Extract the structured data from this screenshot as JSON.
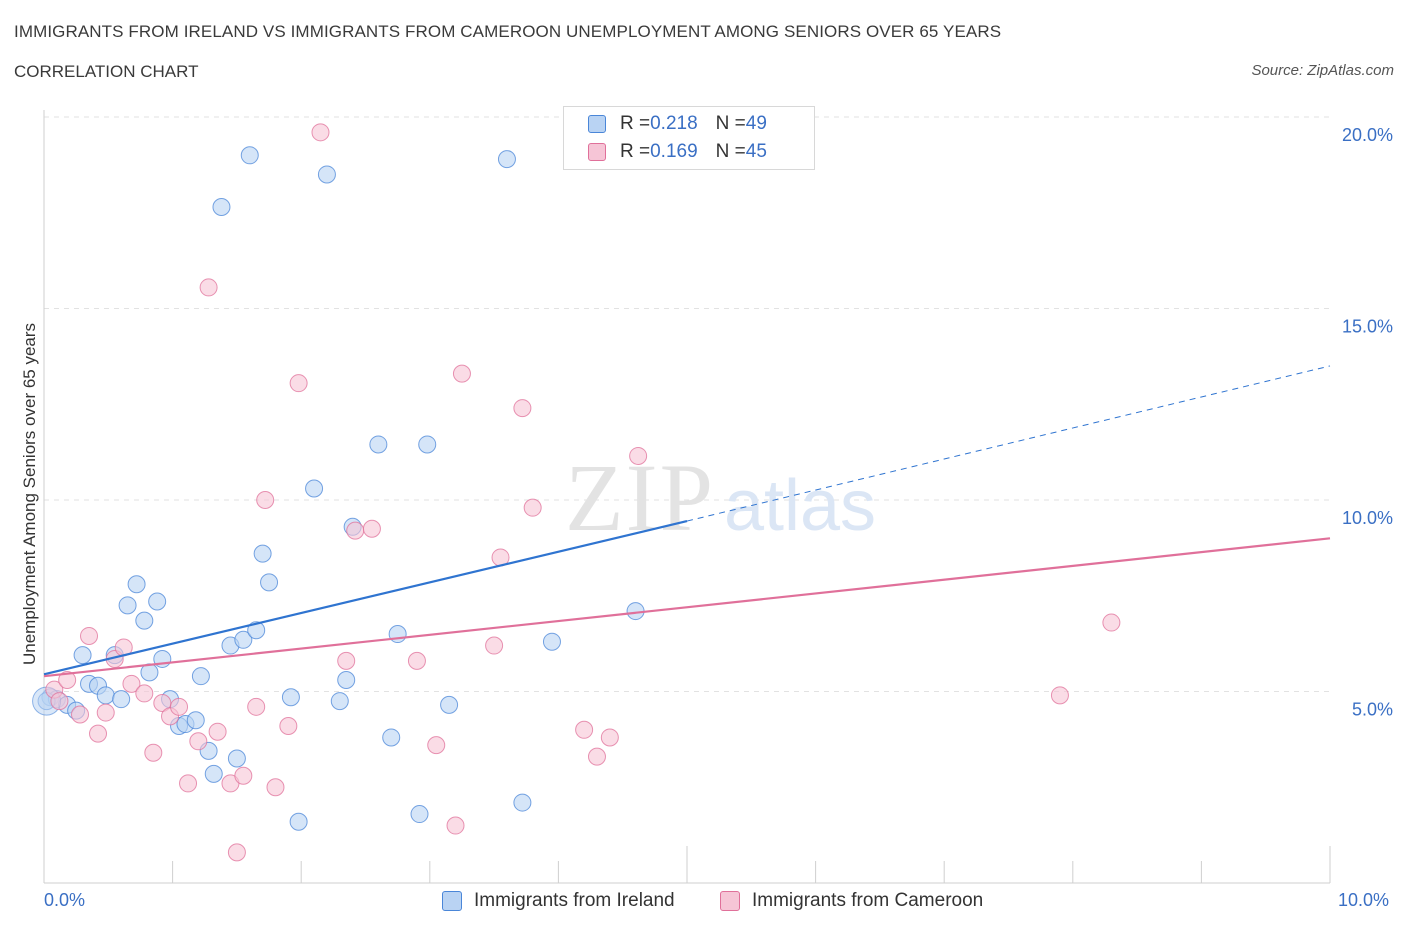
{
  "header": {
    "title": "IMMIGRANTS FROM IRELAND VS IMMIGRANTS FROM CAMEROON UNEMPLOYMENT AMONG SENIORS OVER 65 YEARS",
    "subtitle": "CORRELATION CHART",
    "source": "Source: ZipAtlas.com"
  },
  "legend": {
    "ireland": {
      "r_label": "R = ",
      "r_value": "0.218",
      "n_label": "N = ",
      "n_value": "49"
    },
    "cameroon": {
      "r_label": "R = ",
      "r_value": "0.169",
      "n_label": "N = ",
      "n_value": "45"
    }
  },
  "chart_data": {
    "type": "scatter",
    "title": "IMMIGRANTS FROM IRELAND VS IMMIGRANTS FROM CAMEROON UNEMPLOYMENT AMONG SENIORS OVER 65 YEARS",
    "subtitle": "CORRELATION CHART",
    "xlabel": "",
    "ylabel": "Unemployment Among Seniors over 65 years",
    "xlim": [
      0,
      10
    ],
    "ylim": [
      0,
      20
    ],
    "x_tick_labels": [
      "0.0%",
      "10.0%"
    ],
    "y_ticks": [
      5,
      10,
      15,
      20
    ],
    "y_tick_labels": [
      "5.0%",
      "10.0%",
      "15.0%",
      "20.0%"
    ],
    "grid": true,
    "legend_position": "top-center",
    "colors": {
      "ireland": "#4a86d8",
      "ireland_fill": "#b9d3f3",
      "cameroon": "#e0709a",
      "cameroon_fill": "#f6c5d6"
    },
    "series": [
      {
        "name": "Immigrants from Ireland",
        "R": 0.218,
        "N": 49,
        "trend": {
          "x0": 0.0,
          "y0": 5.45,
          "x1": 5.0,
          "y1": 9.45,
          "dashed_to_x": 10.0,
          "dashed_to_y": 13.5
        },
        "points": [
          [
            0.05,
            4.85
          ],
          [
            0.1,
            4.8
          ],
          [
            0.18,
            4.65
          ],
          [
            0.25,
            4.5
          ],
          [
            0.3,
            5.95
          ],
          [
            0.35,
            5.2
          ],
          [
            0.42,
            5.15
          ],
          [
            0.48,
            4.9
          ],
          [
            0.55,
            5.95
          ],
          [
            0.6,
            4.8
          ],
          [
            0.65,
            7.25
          ],
          [
            0.72,
            7.8
          ],
          [
            0.78,
            6.85
          ],
          [
            0.82,
            5.5
          ],
          [
            0.88,
            7.35
          ],
          [
            0.92,
            5.85
          ],
          [
            0.98,
            4.8
          ],
          [
            1.05,
            4.1
          ],
          [
            1.1,
            4.15
          ],
          [
            1.18,
            4.25
          ],
          [
            1.22,
            5.4
          ],
          [
            1.28,
            3.45
          ],
          [
            1.32,
            2.85
          ],
          [
            1.38,
            17.65
          ],
          [
            1.45,
            6.2
          ],
          [
            1.5,
            3.25
          ],
          [
            1.55,
            6.35
          ],
          [
            1.6,
            19.0
          ],
          [
            1.65,
            6.6
          ],
          [
            1.7,
            8.6
          ],
          [
            1.75,
            7.85
          ],
          [
            1.92,
            4.85
          ],
          [
            1.98,
            1.6
          ],
          [
            2.1,
            10.3
          ],
          [
            2.2,
            18.5
          ],
          [
            2.3,
            4.75
          ],
          [
            2.35,
            5.3
          ],
          [
            2.4,
            9.3
          ],
          [
            2.6,
            11.45
          ],
          [
            2.7,
            3.8
          ],
          [
            2.75,
            6.5
          ],
          [
            2.92,
            1.8
          ],
          [
            2.98,
            11.45
          ],
          [
            3.15,
            4.65
          ],
          [
            3.6,
            18.9
          ],
          [
            3.72,
            2.1
          ],
          [
            3.95,
            6.3
          ],
          [
            4.6,
            7.1
          ],
          [
            0.02,
            4.75
          ]
        ]
      },
      {
        "name": "Immigrants from Cameroon",
        "R": 0.169,
        "N": 45,
        "trend": {
          "x0": 0.0,
          "y0": 5.4,
          "x1": 10.0,
          "y1": 9.0
        },
        "points": [
          [
            0.08,
            5.05
          ],
          [
            0.12,
            4.75
          ],
          [
            0.18,
            5.3
          ],
          [
            0.28,
            4.4
          ],
          [
            0.35,
            6.45
          ],
          [
            0.42,
            3.9
          ],
          [
            0.48,
            4.45
          ],
          [
            0.55,
            5.85
          ],
          [
            0.62,
            6.15
          ],
          [
            0.68,
            5.2
          ],
          [
            0.78,
            4.95
          ],
          [
            0.85,
            3.4
          ],
          [
            0.92,
            4.7
          ],
          [
            0.98,
            4.35
          ],
          [
            1.05,
            4.6
          ],
          [
            1.12,
            2.6
          ],
          [
            1.2,
            3.7
          ],
          [
            1.28,
            15.55
          ],
          [
            1.35,
            3.95
          ],
          [
            1.45,
            2.6
          ],
          [
            1.5,
            0.8
          ],
          [
            1.55,
            2.8
          ],
          [
            1.65,
            4.6
          ],
          [
            1.72,
            10.0
          ],
          [
            1.8,
            2.5
          ],
          [
            1.9,
            4.1
          ],
          [
            1.98,
            13.05
          ],
          [
            2.35,
            5.8
          ],
          [
            2.42,
            9.2
          ],
          [
            2.55,
            9.25
          ],
          [
            2.9,
            5.8
          ],
          [
            3.05,
            3.6
          ],
          [
            3.2,
            1.5
          ],
          [
            3.25,
            13.3
          ],
          [
            3.5,
            6.2
          ],
          [
            3.55,
            8.5
          ],
          [
            3.72,
            12.4
          ],
          [
            3.8,
            9.8
          ],
          [
            4.2,
            4.0
          ],
          [
            4.3,
            3.3
          ],
          [
            4.4,
            3.8
          ],
          [
            4.62,
            11.15
          ],
          [
            7.9,
            4.9
          ],
          [
            8.3,
            6.8
          ],
          [
            2.15,
            19.6
          ]
        ]
      }
    ]
  },
  "bottom_legend": {
    "ireland_label": "Immigrants from Ireland",
    "cameroon_label": "Immigrants from Cameroon"
  },
  "watermark": {
    "zip": "ZIP",
    "atlas": "atlas"
  }
}
